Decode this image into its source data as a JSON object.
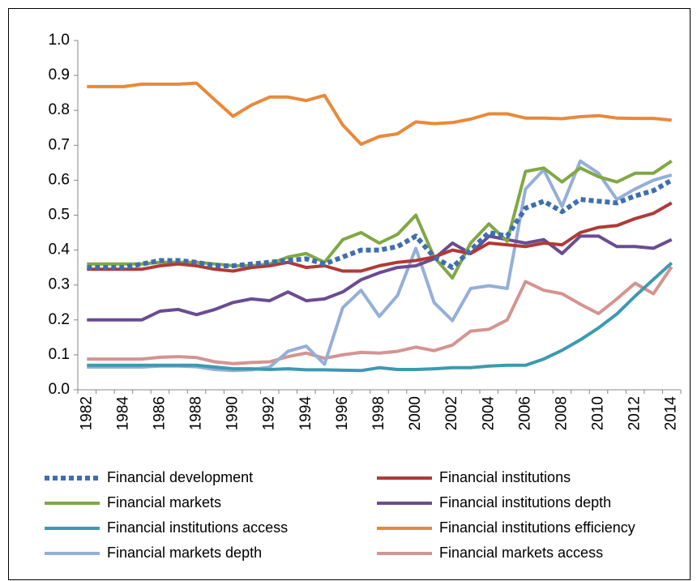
{
  "chart_data": {
    "type": "line",
    "categories": [
      "1982",
      null,
      "1984",
      null,
      "1986",
      null,
      "1988",
      null,
      "1990",
      null,
      "1992",
      null,
      "1994",
      null,
      "1996",
      null,
      "1998",
      null,
      "2000",
      null,
      "2002",
      null,
      "2004",
      null,
      "2006",
      null,
      "2008",
      null,
      "2010",
      null,
      "2012",
      null,
      "2014"
    ],
    "ylim": [
      0,
      1
    ],
    "yticks": [
      {
        "value": 0,
        "label": "0.0"
      },
      0.1,
      0.2,
      0.3,
      0.4,
      0.5,
      0.6,
      0.7,
      0.8,
      0.9,
      {
        "value": 1,
        "label": "1.0"
      }
    ],
    "grid": false,
    "legend": "bottom",
    "series": [
      {
        "name": "Financial development",
        "color": "#3f6eb0",
        "dash": "dotted",
        "values": [
          0.35,
          0.35,
          0.35,
          0.36,
          0.37,
          0.37,
          0.365,
          0.355,
          0.355,
          0.36,
          0.365,
          0.37,
          0.375,
          0.36,
          0.38,
          0.4,
          0.4,
          0.41,
          0.44,
          0.38,
          0.35,
          0.4,
          0.45,
          0.44,
          0.52,
          0.54,
          0.51,
          0.545,
          0.54,
          0.535,
          0.555,
          0.57,
          0.6
        ]
      },
      {
        "name": "Financial institutions",
        "color": "#b03a35",
        "values": [
          0.345,
          0.345,
          0.345,
          0.345,
          0.355,
          0.36,
          0.355,
          0.345,
          0.34,
          0.35,
          0.355,
          0.365,
          0.35,
          0.355,
          0.34,
          0.34,
          0.355,
          0.365,
          0.37,
          0.38,
          0.4,
          0.39,
          0.42,
          0.415,
          0.41,
          0.42,
          0.415,
          0.45,
          0.465,
          0.47,
          0.49,
          0.505,
          0.535
        ]
      },
      {
        "name": "Financial markets",
        "color": "#80a843",
        "values": [
          0.36,
          0.36,
          0.36,
          0.36,
          0.365,
          0.365,
          0.365,
          0.36,
          0.355,
          0.355,
          0.36,
          0.38,
          0.39,
          0.365,
          0.43,
          0.45,
          0.42,
          0.445,
          0.5,
          0.38,
          0.32,
          0.42,
          0.475,
          0.425,
          0.625,
          0.635,
          0.595,
          0.635,
          0.61,
          0.595,
          0.62,
          0.62,
          0.655
        ]
      },
      {
        "name": "Financial institutions depth",
        "color": "#6a4c92",
        "values": [
          0.2,
          0.2,
          0.2,
          0.2,
          0.225,
          0.23,
          0.215,
          0.23,
          0.25,
          0.26,
          0.255,
          0.28,
          0.255,
          0.26,
          0.28,
          0.315,
          0.335,
          0.35,
          0.355,
          0.375,
          0.42,
          0.39,
          0.44,
          0.43,
          0.42,
          0.43,
          0.39,
          0.44,
          0.44,
          0.41,
          0.41,
          0.405,
          0.43
        ]
      },
      {
        "name": "Financial institutions access",
        "color": "#3c9ab0",
        "values": [
          0.07,
          0.07,
          0.07,
          0.07,
          0.07,
          0.07,
          0.07,
          0.065,
          0.06,
          0.06,
          0.058,
          0.06,
          0.057,
          0.057,
          0.056,
          0.055,
          0.063,
          0.058,
          0.058,
          0.06,
          0.063,
          0.063,
          0.068,
          0.07,
          0.07,
          0.088,
          0.113,
          0.143,
          0.177,
          0.217,
          0.268,
          0.316,
          0.363
        ]
      },
      {
        "name": "Financial institutions efficiency",
        "color": "#e8893a",
        "values": [
          0.868,
          0.868,
          0.868,
          0.875,
          0.875,
          0.875,
          0.878,
          0.83,
          0.783,
          0.815,
          0.838,
          0.838,
          0.828,
          0.843,
          0.758,
          0.703,
          0.725,
          0.733,
          0.767,
          0.762,
          0.765,
          0.775,
          0.79,
          0.79,
          0.778,
          0.778,
          0.776,
          0.782,
          0.785,
          0.778,
          0.777,
          0.777,
          0.772
        ]
      },
      {
        "name": "Financial markets depth",
        "color": "#94afd8",
        "values": [
          0.065,
          0.065,
          0.065,
          0.065,
          0.068,
          0.068,
          0.066,
          0.058,
          0.055,
          0.057,
          0.065,
          0.11,
          0.125,
          0.073,
          0.235,
          0.285,
          0.21,
          0.27,
          0.405,
          0.25,
          0.198,
          0.29,
          0.298,
          0.29,
          0.575,
          0.63,
          0.525,
          0.655,
          0.62,
          0.545,
          0.575,
          0.6,
          0.615
        ]
      },
      {
        "name": "Financial markets access",
        "color": "#d49491",
        "values": [
          0.088,
          0.088,
          0.088,
          0.088,
          0.093,
          0.095,
          0.092,
          0.08,
          0.075,
          0.078,
          0.08,
          0.095,
          0.105,
          0.09,
          0.1,
          0.107,
          0.105,
          0.11,
          0.122,
          0.112,
          0.128,
          0.168,
          0.173,
          0.2,
          0.31,
          0.285,
          0.275,
          0.245,
          0.218,
          0.26,
          0.305,
          0.275,
          0.352
        ]
      }
    ]
  }
}
